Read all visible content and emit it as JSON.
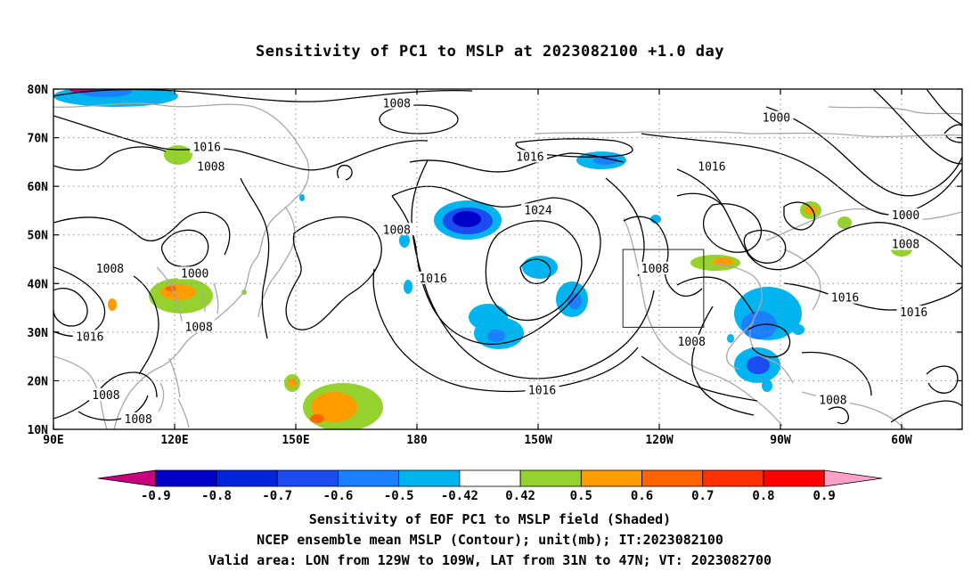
{
  "title": "Sensitivity of PC1 to MSLP at 2023082100 +1.0 day",
  "map": {
    "lon_min": 90,
    "lon_max": 315,
    "lat_min": 10,
    "lat_max": 80,
    "lat_ticks": [
      {
        "lat": 80,
        "label": "80N"
      },
      {
        "lat": 70,
        "label": "70N"
      },
      {
        "lat": 60,
        "label": "60N"
      },
      {
        "lat": 50,
        "label": "50N"
      },
      {
        "lat": 40,
        "label": "40N"
      },
      {
        "lat": 30,
        "label": "30N"
      },
      {
        "lat": 20,
        "label": "20N"
      },
      {
        "lat": 10,
        "label": "10N"
      }
    ],
    "lon_ticks": [
      {
        "lon": 90,
        "label": "90E"
      },
      {
        "lon": 120,
        "label": "120E"
      },
      {
        "lon": 150,
        "label": "150E"
      },
      {
        "lon": 180,
        "label": "180"
      },
      {
        "lon": 210,
        "label": "150W"
      },
      {
        "lon": 240,
        "label": "120W"
      },
      {
        "lon": 270,
        "label": "90W"
      },
      {
        "lon": 300,
        "label": "60W"
      }
    ],
    "valid_box": {
      "lon_west": 231,
      "lon_east": 251,
      "lat_south": 31,
      "lat_north": 47
    },
    "contour_labels": [
      {
        "lon": 175,
        "lat": 77,
        "text": "1008"
      },
      {
        "lon": 128,
        "lat": 68,
        "text": "1016"
      },
      {
        "lon": 129,
        "lat": 64,
        "text": "1008"
      },
      {
        "lon": 253,
        "lat": 64,
        "text": "1016"
      },
      {
        "lon": 208,
        "lat": 66,
        "text": "1016"
      },
      {
        "lon": 210,
        "lat": 55,
        "text": "1024"
      },
      {
        "lon": 269,
        "lat": 74,
        "text": "1000"
      },
      {
        "lon": 301,
        "lat": 54,
        "text": "1000"
      },
      {
        "lon": 301,
        "lat": 48,
        "text": "1008"
      },
      {
        "lon": 184,
        "lat": 41,
        "text": "1016"
      },
      {
        "lon": 211,
        "lat": 18,
        "text": "1016"
      },
      {
        "lon": 239,
        "lat": 43,
        "text": "1008"
      },
      {
        "lon": 248,
        "lat": 28,
        "text": "1008"
      },
      {
        "lon": 175,
        "lat": 51,
        "text": "1008"
      },
      {
        "lon": 125,
        "lat": 42,
        "text": "1000"
      },
      {
        "lon": 104,
        "lat": 43,
        "text": "1008"
      },
      {
        "lon": 126,
        "lat": 31,
        "text": "1008"
      },
      {
        "lon": 99,
        "lat": 29,
        "text": "1016"
      },
      {
        "lon": 103,
        "lat": 17,
        "text": "1008"
      },
      {
        "lon": 111,
        "lat": 12,
        "text": "1008"
      },
      {
        "lon": 286,
        "lat": 37,
        "text": "1016"
      },
      {
        "lon": 303,
        "lat": 34,
        "text": "1016"
      },
      {
        "lon": 283,
        "lat": 16,
        "text": "1008"
      }
    ]
  },
  "colorbar": {
    "colors": [
      "#c8007e",
      "#0000c8",
      "#0024dc",
      "#1a4cf0",
      "#1a80ff",
      "#00b4f0",
      "#ffffff",
      "#96d22d",
      "#ff9c00",
      "#ff6400",
      "#ff3200",
      "#ff0000",
      "#ffa0c8"
    ],
    "labels": [
      "-0.9",
      "-0.8",
      "-0.7",
      "-0.6",
      "-0.5",
      "-0.42",
      "0.42",
      "0.5",
      "0.6",
      "0.7",
      "0.8",
      "0.9"
    ]
  },
  "footer": {
    "line1": "Sensitivity of EOF PC1 to MSLP field (Shaded)",
    "line2": "NCEP ensemble mean MSLP (Contour); unit(mb); IT:2023082100",
    "line3": "Valid area: LON from 129W to 109W, LAT from 31N to 47N; VT: 2023082700"
  }
}
